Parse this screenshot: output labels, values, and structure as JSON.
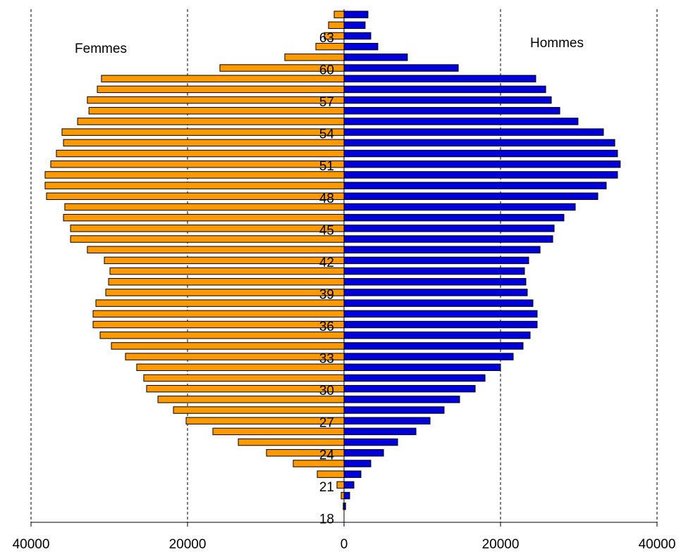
{
  "chart_data": {
    "type": "bar",
    "orientation": "horizontal",
    "stacked": false,
    "categories": [
      "18",
      null,
      null,
      "21",
      null,
      null,
      "24",
      null,
      null,
      "27",
      null,
      null,
      "30",
      null,
      null,
      "33",
      null,
      null,
      "36",
      null,
      null,
      "39",
      null,
      null,
      "42",
      null,
      null,
      "45",
      null,
      null,
      "48",
      null,
      null,
      "51",
      null,
      null,
      "54",
      null,
      null,
      "57",
      null,
      null,
      "60",
      null,
      null,
      "63",
      null,
      null
    ],
    "series": [
      {
        "name": "Femmes",
        "color": "#ff9900",
        "values": [
          0,
          -100,
          -360,
          -900,
          -3420,
          -6490,
          -9910,
          -13510,
          -16760,
          -20180,
          -21800,
          -23780,
          -25230,
          -25590,
          -26490,
          -27930,
          -29730,
          -31170,
          -32070,
          -32070,
          -31710,
          -30450,
          -30090,
          -29910,
          -30630,
          -32800,
          -34950,
          -34950,
          -35850,
          -35680,
          -38020,
          -38200,
          -38200,
          -37480,
          -36760,
          -35850,
          -36040,
          -34050,
          -32600,
          -32800,
          -31530,
          -31000,
          -15860,
          -7570,
          -3600,
          -2520,
          -1980,
          -1260
        ]
      },
      {
        "name": "Hommes",
        "color": "#0000dd",
        "values": [
          0,
          200,
          720,
          1260,
          2160,
          3420,
          5050,
          6850,
          9190,
          10990,
          12790,
          14770,
          16760,
          18020,
          20000,
          21620,
          22880,
          23780,
          24680,
          24680,
          24140,
          23420,
          23240,
          23060,
          23600,
          25050,
          26670,
          26850,
          28100,
          29550,
          32430,
          33510,
          34950,
          35300,
          34950,
          34600,
          33150,
          29900,
          27570,
          26490,
          25770,
          24500,
          14600,
          8100,
          4320,
          3420,
          2700,
          3060
        ]
      }
    ],
    "xlim": [
      -40000,
      40000
    ],
    "xticks": [
      {
        "value": -40000,
        "label": "40000"
      },
      {
        "value": -20000,
        "label": "20000"
      },
      0,
      20000,
      40000
    ],
    "grid": true
  }
}
